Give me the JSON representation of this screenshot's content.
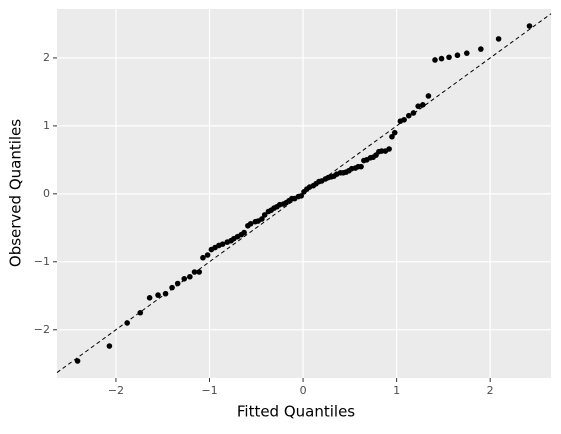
{
  "chart_data": {
    "type": "scatter",
    "xlabel": "Fitted Quantiles",
    "ylabel": "Observed Quantiles",
    "xlim": [
      -2.63,
      2.65
    ],
    "ylim": [
      -2.71,
      2.72
    ],
    "xticks": [
      {
        "value": -2,
        "label": "−2"
      },
      {
        "value": -1,
        "label": "−1"
      },
      0,
      1,
      2
    ],
    "yticks": [
      {
        "value": -2,
        "label": "−2"
      },
      {
        "value": -1,
        "label": "−1"
      },
      0,
      1,
      2
    ],
    "grid": true,
    "color": "#000000",
    "reference_line": {
      "intercept": 0,
      "slope": 1
    },
    "x": [
      -2.41,
      -2.07,
      -1.88,
      -1.74,
      -1.64,
      -1.55,
      -1.47,
      -1.4,
      -1.34,
      -1.27,
      -1.21,
      -1.16,
      -1.11,
      -1.07,
      -1.02,
      -0.98,
      -0.94,
      -0.9,
      -0.86,
      -0.81,
      -0.77,
      -0.74,
      -0.7,
      -0.66,
      -0.63,
      -0.59,
      -0.56,
      -0.51,
      -0.48,
      -0.44,
      -0.41,
      -0.37,
      -0.34,
      -0.31,
      -0.28,
      -0.25,
      -0.21,
      -0.18,
      -0.15,
      -0.12,
      -0.09,
      -0.05,
      -0.02,
      0.01,
      0.04,
      0.07,
      0.11,
      0.14,
      0.17,
      0.2,
      0.24,
      0.27,
      0.3,
      0.33,
      0.36,
      0.4,
      0.43,
      0.46,
      0.49,
      0.52,
      0.56,
      0.59,
      0.62,
      0.65,
      0.68,
      0.72,
      0.75,
      0.78,
      0.81,
      0.84,
      0.88,
      0.92,
      0.95,
      0.98,
      1.04,
      1.08,
      1.13,
      1.18,
      1.23,
      1.28,
      1.34,
      1.41,
      1.48,
      1.56,
      1.65,
      1.75,
      1.9,
      2.09,
      2.42
    ],
    "values": [
      -2.46,
      -2.24,
      -1.9,
      -1.75,
      -1.53,
      -1.49,
      -1.47,
      -1.38,
      -1.32,
      -1.25,
      -1.22,
      -1.15,
      -1.15,
      -0.94,
      -0.9,
      -0.82,
      -0.79,
      -0.76,
      -0.74,
      -0.71,
      -0.69,
      -0.66,
      -0.63,
      -0.6,
      -0.57,
      -0.47,
      -0.44,
      -0.41,
      -0.4,
      -0.37,
      -0.31,
      -0.26,
      -0.24,
      -0.21,
      -0.19,
      -0.16,
      -0.15,
      -0.13,
      -0.1,
      -0.07,
      -0.07,
      -0.04,
      -0.03,
      0.03,
      0.07,
      0.1,
      0.12,
      0.15,
      0.18,
      0.19,
      0.22,
      0.24,
      0.25,
      0.26,
      0.29,
      0.31,
      0.31,
      0.32,
      0.34,
      0.37,
      0.38,
      0.4,
      0.4,
      0.49,
      0.5,
      0.53,
      0.54,
      0.57,
      0.62,
      0.63,
      0.63,
      0.66,
      0.84,
      0.9,
      1.07,
      1.09,
      1.15,
      1.19,
      1.29,
      1.31,
      1.44,
      1.97,
      1.99,
      2.01,
      2.04,
      2.07,
      2.13,
      2.28,
      2.47
    ]
  }
}
